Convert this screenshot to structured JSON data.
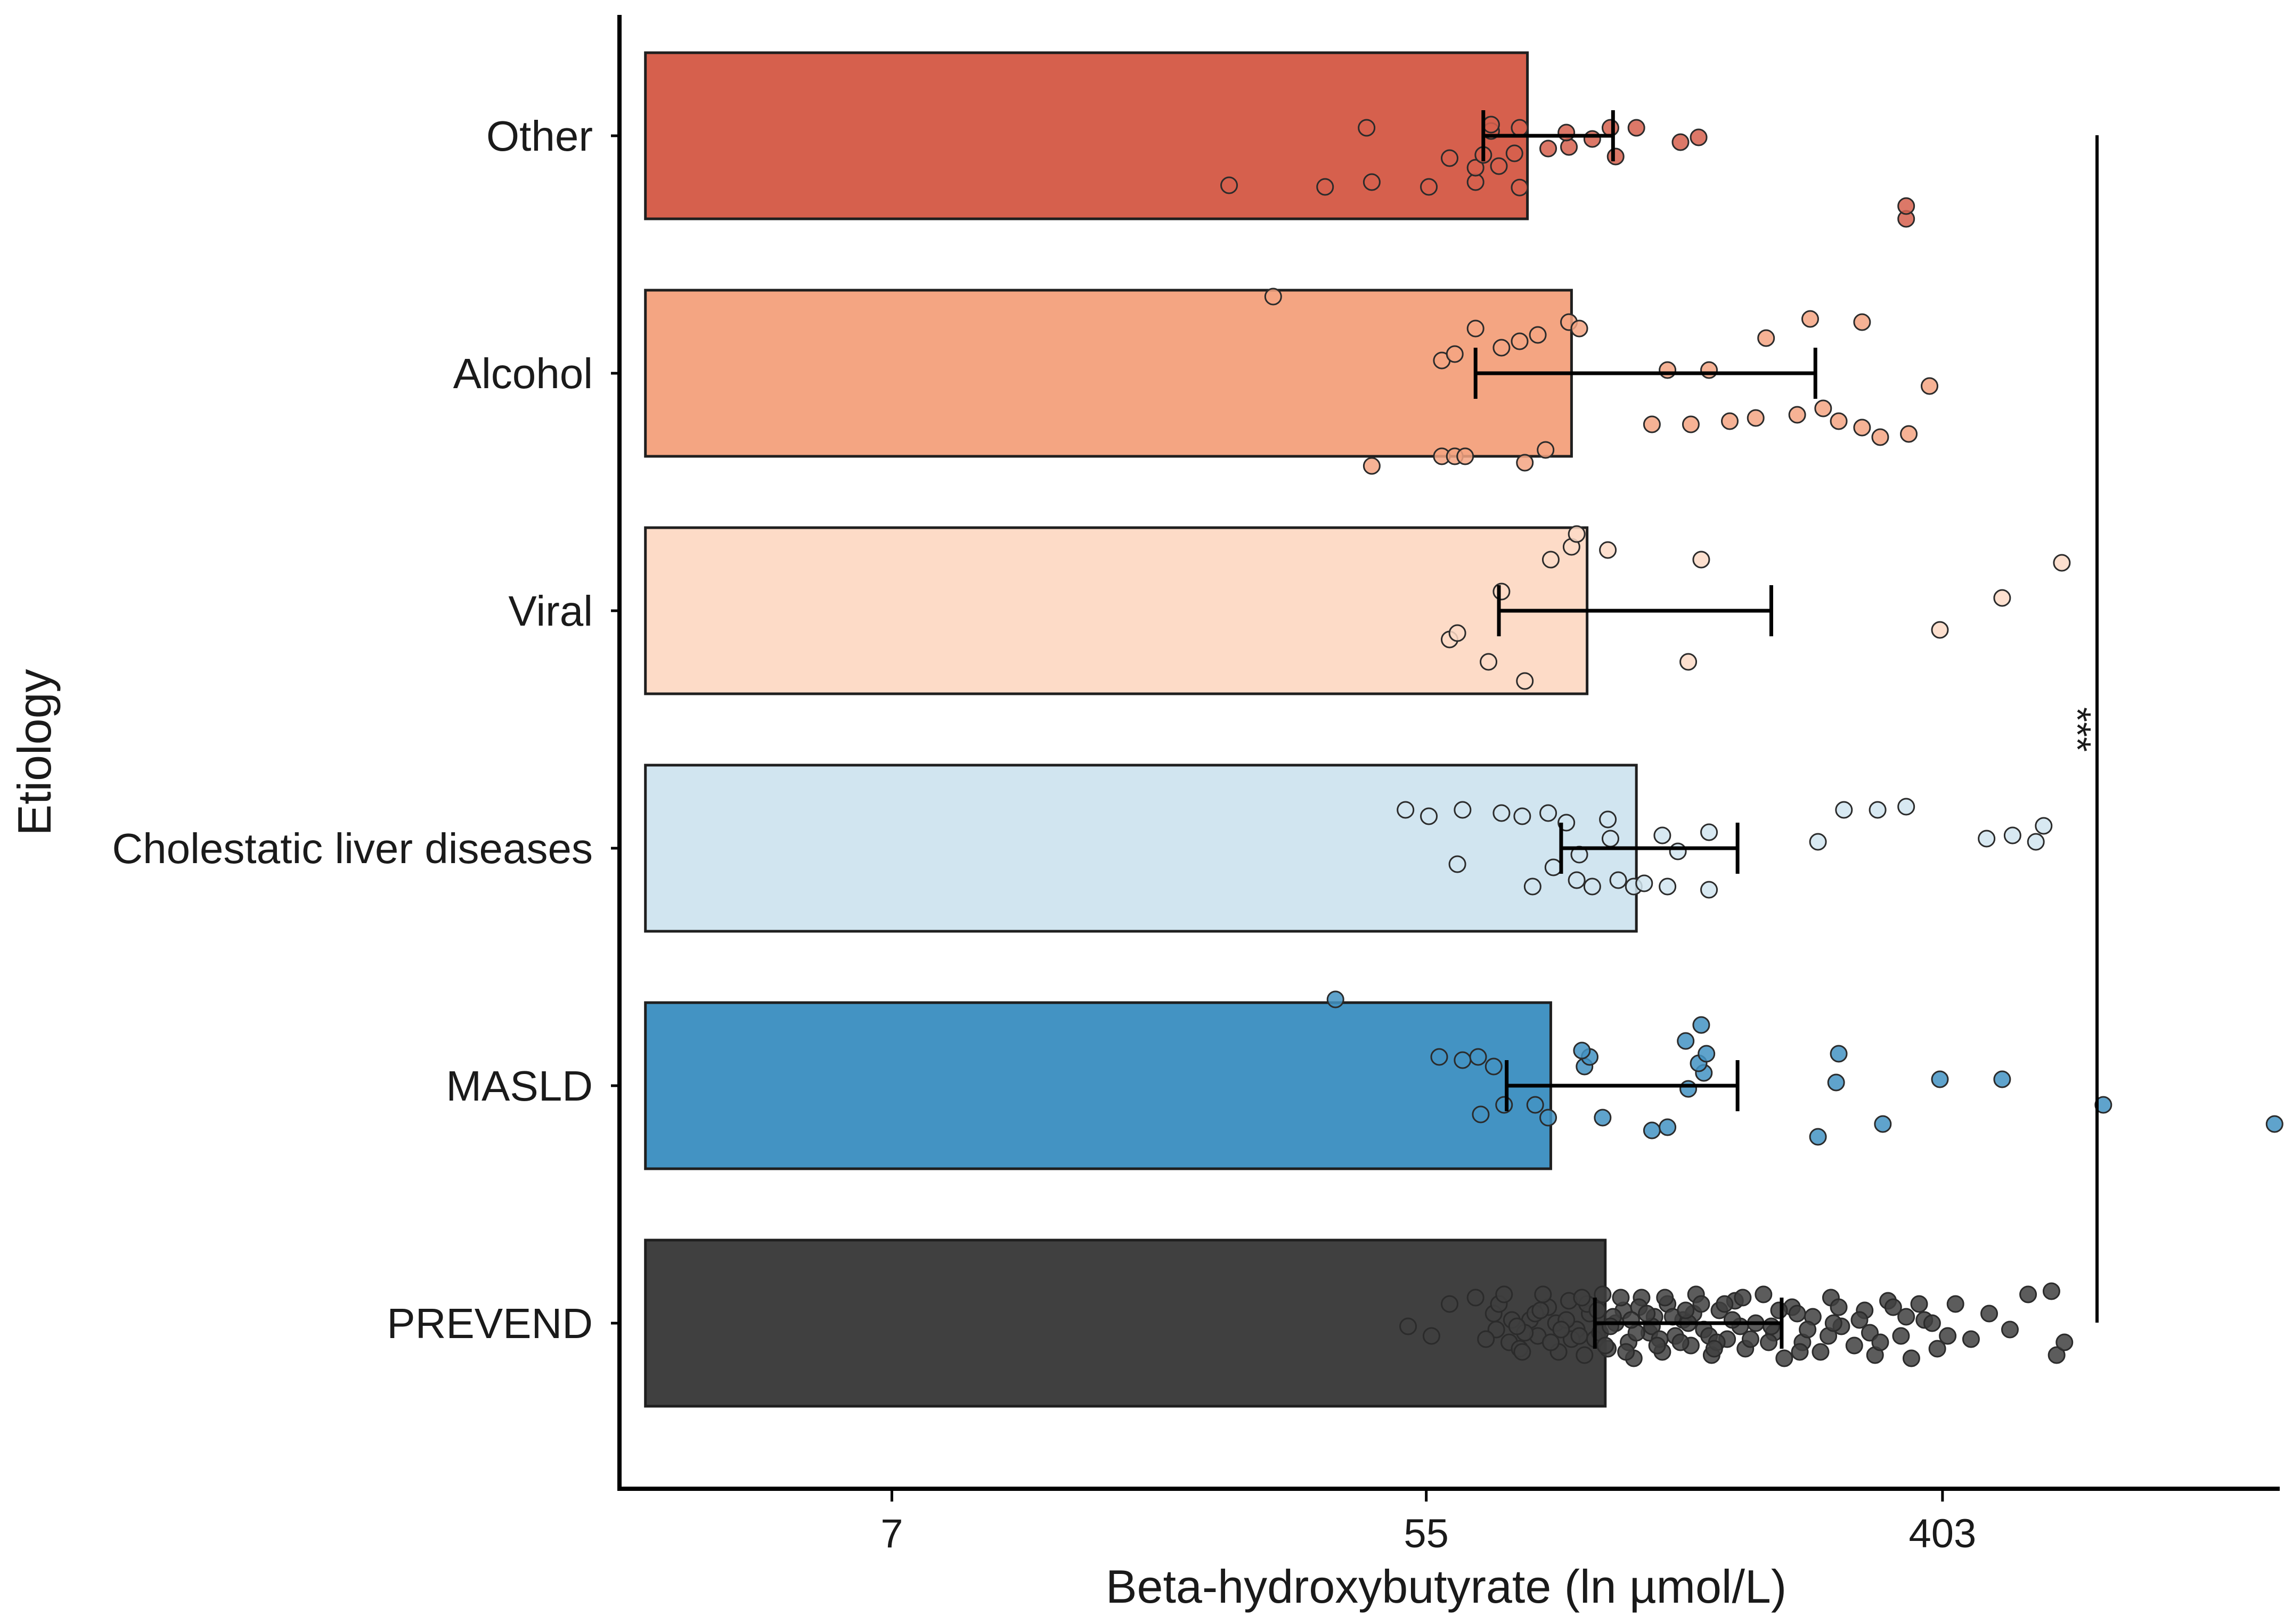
{
  "chart_data": {
    "type": "bar",
    "orientation": "horizontal",
    "xscale": "log",
    "xlabel": "Beta-hydroxybutyrate (ln µmol/L)",
    "ylabel": "Etiology",
    "xlim": [
      0.9,
      7.3
    ],
    "x_ticks": [
      {
        "label": "7",
        "ln_value": 1.95
      },
      {
        "label": "55",
        "ln_value": 4.01
      },
      {
        "label": "403",
        "ln_value": 6.0
      }
    ],
    "significance": {
      "label": "***",
      "from": "Other",
      "to": "PREVEND"
    },
    "categories": [
      {
        "name": "Other",
        "color": "#d6604d",
        "mean": 4.4,
        "err_low": 4.23,
        "err_high": 4.73,
        "points": [
          [
            3.25,
            1.55
          ],
          [
            4.02,
            1.6
          ],
          [
            4.2,
            1.45
          ],
          [
            4.37,
            1.62
          ],
          [
            3.62,
            1.6
          ],
          [
            3.8,
            1.45
          ],
          [
            4.2,
            1.0
          ],
          [
            4.29,
            0.95
          ],
          [
            4.1,
            0.7
          ],
          [
            4.23,
            0.6
          ],
          [
            4.35,
            0.55
          ],
          [
            4.48,
            0.4
          ],
          [
            4.56,
            0.35
          ],
          [
            4.74,
            0.65
          ],
          [
            4.65,
            0.1
          ],
          [
            4.55,
            -0.1
          ],
          [
            4.72,
            -0.25
          ],
          [
            4.82,
            -0.25
          ],
          [
            4.99,
            0.2
          ],
          [
            5.06,
            0.05
          ],
          [
            4.26,
            -0.15
          ],
          [
            4.37,
            -0.25
          ],
          [
            4.26,
            -0.35
          ],
          [
            3.78,
            -0.25
          ],
          [
            5.86,
            2.6
          ],
          [
            5.86,
            2.2
          ]
        ]
      },
      {
        "name": "Alcohol",
        "color": "#f4a582",
        "mean": 4.57,
        "err_low": 4.2,
        "err_high": 5.51,
        "points": [
          [
            3.8,
            2.9
          ],
          [
            4.07,
            2.6
          ],
          [
            4.12,
            2.6
          ],
          [
            4.16,
            2.6
          ],
          [
            4.39,
            2.8
          ],
          [
            4.47,
            2.4
          ],
          [
            4.07,
            -0.4
          ],
          [
            4.12,
            -0.6
          ],
          [
            4.3,
            -0.8
          ],
          [
            4.37,
            -1.0
          ],
          [
            4.44,
            -1.2
          ],
          [
            4.2,
            -1.4
          ],
          [
            4.56,
            -1.6
          ],
          [
            4.6,
            -1.4
          ],
          [
            3.42,
            -2.4
          ],
          [
            4.88,
            1.6
          ],
          [
            5.03,
            1.6
          ],
          [
            5.18,
            1.5
          ],
          [
            5.28,
            1.4
          ],
          [
            5.44,
            1.3
          ],
          [
            5.54,
            1.1
          ],
          [
            5.6,
            1.5
          ],
          [
            5.69,
            1.7
          ],
          [
            5.76,
            2.0
          ],
          [
            5.87,
            1.9
          ],
          [
            5.95,
            0.4
          ],
          [
            4.94,
            -0.1
          ],
          [
            5.1,
            -0.1
          ],
          [
            5.32,
            -1.1
          ],
          [
            5.49,
            -1.7
          ],
          [
            5.69,
            -1.6
          ]
        ]
      },
      {
        "name": "Viral",
        "color": "#fddbc7",
        "mean": 4.63,
        "err_low": 4.29,
        "err_high": 5.34,
        "points": [
          [
            4.1,
            0.9
          ],
          [
            4.13,
            0.7
          ],
          [
            4.25,
            1.6
          ],
          [
            4.3,
            -0.6
          ],
          [
            4.39,
            2.2
          ],
          [
            4.49,
            -1.6
          ],
          [
            4.57,
            -2.0
          ],
          [
            4.59,
            -2.4
          ],
          [
            4.71,
            -1.9
          ],
          [
            5.02,
            1.6
          ],
          [
            5.07,
            -1.6
          ],
          [
            5.99,
            0.6
          ],
          [
            6.23,
            -0.4
          ],
          [
            6.46,
            -1.5
          ]
        ]
      },
      {
        "name": "Cholestatic liver diseases",
        "color": "#d1e5f0",
        "mean": 4.82,
        "err_low": 4.53,
        "err_high": 5.21,
        "points": [
          [
            4.13,
            0.5
          ],
          [
            4.42,
            1.2
          ],
          [
            4.5,
            0.6
          ],
          [
            4.59,
            1.0
          ],
          [
            4.65,
            1.2
          ],
          [
            4.75,
            1.0
          ],
          [
            4.81,
            1.2
          ],
          [
            4.85,
            1.1
          ],
          [
            4.94,
            1.2
          ],
          [
            5.1,
            1.3
          ],
          [
            4.6,
            0.2
          ],
          [
            4.72,
            -0.3
          ],
          [
            4.92,
            -0.4
          ],
          [
            4.98,
            0.1
          ],
          [
            4.55,
            -0.8
          ],
          [
            4.48,
            -1.1
          ],
          [
            4.38,
            -1.0
          ],
          [
            4.3,
            -1.1
          ],
          [
            4.15,
            -1.2
          ],
          [
            4.02,
            -1.0
          ],
          [
            3.93,
            -1.2
          ],
          [
            4.71,
            -0.9
          ],
          [
            5.1,
            -0.5
          ],
          [
            5.52,
            -0.2
          ],
          [
            5.62,
            -1.2
          ],
          [
            5.75,
            -1.2
          ],
          [
            5.86,
            -1.3
          ],
          [
            6.17,
            -0.3
          ],
          [
            6.27,
            -0.4
          ],
          [
            6.36,
            -0.2
          ],
          [
            6.39,
            -0.7
          ]
        ]
      },
      {
        "name": "MASLD",
        "color": "#4393c3",
        "mean": 4.49,
        "err_low": 4.32,
        "err_high": 5.21,
        "points": [
          [
            4.22,
            0.9
          ],
          [
            4.31,
            0.6
          ],
          [
            4.27,
            -0.6
          ],
          [
            4.15,
            -0.8
          ],
          [
            4.21,
            -0.9
          ],
          [
            4.06,
            -0.9
          ],
          [
            4.43,
            0.6
          ],
          [
            4.48,
            1.0
          ],
          [
            4.69,
            1.0
          ],
          [
            4.88,
            1.4
          ],
          [
            4.94,
            1.3
          ],
          [
            5.02,
            0.1
          ],
          [
            5.08,
            -0.4
          ],
          [
            5.06,
            -0.7
          ],
          [
            5.09,
            -1.0
          ],
          [
            5.01,
            -1.4
          ],
          [
            5.07,
            -1.9
          ],
          [
            4.62,
            -0.6
          ],
          [
            4.64,
            -0.9
          ],
          [
            4.61,
            -1.1
          ],
          [
            3.66,
            -2.7
          ],
          [
            5.59,
            -0.1
          ],
          [
            5.6,
            -1.0
          ],
          [
            5.77,
            1.2
          ],
          [
            5.99,
            -0.2
          ],
          [
            6.23,
            -0.2
          ],
          [
            6.62,
            0.6
          ],
          [
            7.28,
            1.2
          ],
          [
            5.52,
            1.6
          ]
        ]
      },
      {
        "name": "PREVEND",
        "color": "#404040",
        "mean": 4.7,
        "err_low": 4.66,
        "err_high": 5.38,
        "points": [
          [
            3.94,
            0.1
          ],
          [
            4.03,
            0.4
          ],
          [
            4.1,
            -0.6
          ],
          [
            4.2,
            -0.8
          ],
          [
            4.27,
            -0.3
          ],
          [
            4.28,
            0.2
          ],
          [
            4.33,
            0.6
          ],
          [
            4.37,
            0.8
          ],
          [
            4.41,
            -0.1
          ],
          [
            4.44,
            0.4
          ],
          [
            4.48,
            -0.5
          ],
          [
            4.52,
            0.9
          ],
          [
            4.56,
            -0.7
          ],
          [
            4.59,
            0.2
          ],
          [
            4.62,
            1.0
          ],
          [
            4.64,
            -0.3
          ],
          [
            4.66,
            0.5
          ],
          [
            4.69,
            -0.9
          ],
          [
            4.71,
            0.8
          ],
          [
            4.74,
            0.0
          ],
          [
            4.77,
            -0.4
          ],
          [
            4.79,
            0.6
          ],
          [
            4.81,
            1.1
          ],
          [
            4.84,
            -0.8
          ],
          [
            4.87,
            0.3
          ],
          [
            4.89,
            -0.2
          ],
          [
            4.92,
            0.9
          ],
          [
            4.94,
            -0.6
          ],
          [
            4.97,
            0.4
          ],
          [
            5.0,
            -0.1
          ],
          [
            5.03,
            0.7
          ],
          [
            5.05,
            -0.9
          ],
          [
            5.08,
            0.2
          ],
          [
            5.11,
            1.0
          ],
          [
            5.14,
            -0.4
          ],
          [
            5.17,
            0.5
          ],
          [
            5.2,
            -0.7
          ],
          [
            5.24,
            0.8
          ],
          [
            5.28,
            0.0
          ],
          [
            5.31,
            -0.9
          ],
          [
            5.35,
            0.3
          ],
          [
            5.39,
            1.1
          ],
          [
            5.42,
            -0.5
          ],
          [
            5.46,
            0.6
          ],
          [
            5.5,
            -0.2
          ],
          [
            5.53,
            0.9
          ],
          [
            5.57,
            -0.8
          ],
          [
            5.61,
            0.1
          ],
          [
            5.66,
            0.7
          ],
          [
            5.7,
            -0.4
          ],
          [
            5.74,
            1.0
          ],
          [
            5.79,
            -0.7
          ],
          [
            5.84,
            0.4
          ],
          [
            5.88,
            1.1
          ],
          [
            5.93,
            -0.1
          ],
          [
            5.98,
            0.8
          ],
          [
            6.05,
            -0.6
          ],
          [
            6.11,
            0.5
          ],
          [
            6.18,
            -0.3
          ],
          [
            6.26,
            0.2
          ],
          [
            6.33,
            -0.9
          ],
          [
            6.42,
            -1.0
          ],
          [
            6.44,
            1.0
          ],
          [
            6.47,
            0.6
          ],
          [
            4.34,
            -0.1
          ],
          [
            4.39,
            0.3
          ],
          [
            4.46,
            -0.9
          ],
          [
            4.51,
            0.0
          ],
          [
            4.57,
            0.5
          ],
          [
            4.63,
            -0.6
          ],
          [
            4.68,
            0.3
          ],
          [
            4.73,
            -0.2
          ],
          [
            4.78,
            0.9
          ],
          [
            4.83,
            -0.5
          ],
          [
            4.88,
            0.1
          ],
          [
            4.93,
            -0.8
          ],
          [
            4.99,
            0.6
          ],
          [
            5.04,
            -0.3
          ],
          [
            5.1,
            0.4
          ],
          [
            5.16,
            -0.6
          ],
          [
            5.22,
            0.1
          ],
          [
            5.33,
            0.6
          ],
          [
            5.44,
            -0.3
          ],
          [
            5.56,
            0.4
          ],
          [
            5.68,
            -0.1
          ],
          [
            5.81,
            -0.5
          ],
          [
            5.96,
            0.0
          ],
          [
            4.29,
            -0.6
          ],
          [
            4.36,
            0.1
          ],
          [
            4.43,
            -0.3
          ],
          [
            4.49,
            0.6
          ],
          [
            4.55,
            -0.1
          ],
          [
            4.6,
            0.4
          ],
          [
            4.67,
            -0.4
          ],
          [
            4.72,
            0.1
          ],
          [
            4.76,
            -0.8
          ],
          [
            4.82,
            0.3
          ],
          [
            4.86,
            -0.3
          ],
          [
            4.91,
            0.5
          ],
          [
            4.96,
            -0.2
          ],
          [
            5.02,
            0.0
          ],
          [
            5.07,
            -0.6
          ],
          [
            5.13,
            0.6
          ],
          [
            5.19,
            -0.1
          ],
          [
            5.26,
            0.5
          ],
          [
            5.37,
            -0.4
          ],
          [
            5.48,
            0.2
          ],
          [
            5.6,
            -0.5
          ],
          [
            5.72,
            0.3
          ],
          [
            5.86,
            -0.2
          ],
          [
            6.02,
            0.4
          ],
          [
            4.24,
            0.5
          ],
          [
            4.31,
            -0.9
          ],
          [
            4.38,
            0.9
          ],
          [
            4.45,
            -0.4
          ],
          [
            4.53,
            0.2
          ],
          [
            4.61,
            -0.8
          ],
          [
            4.7,
            0.7
          ],
          [
            4.8,
            -0.1
          ],
          [
            4.9,
            0.7
          ],
          [
            5.01,
            -0.4
          ],
          [
            5.12,
            0.8
          ],
          [
            5.23,
            -0.8
          ],
          [
            5.34,
            0.1
          ],
          [
            5.45,
            0.9
          ],
          [
            5.58,
            0.0
          ],
          [
            5.76,
            0.6
          ],
          [
            5.91,
            -0.6
          ]
        ]
      }
    ]
  }
}
